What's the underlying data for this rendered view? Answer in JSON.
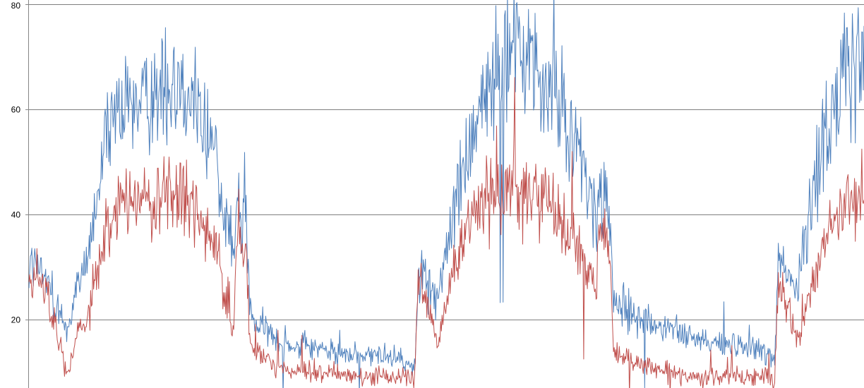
{
  "chart_data": {
    "type": "line",
    "title": "",
    "xlabel": "",
    "ylabel": "",
    "ylim": [
      7.5,
      80.8
    ],
    "yticks": [
      20,
      40,
      60,
      80
    ],
    "ytick_labels": [
      "20",
      "40",
      "60",
      "80"
    ],
    "grid": true,
    "legend": "none",
    "x_range": [
      0,
      1
    ],
    "colors": {
      "grid": "#7f7f7f",
      "axis": "#868686"
    },
    "series": [
      {
        "color": "#4f81bd",
        "keypoints": [
          [
            0.0,
            31
          ],
          [
            0.02,
            28
          ],
          [
            0.045,
            18
          ],
          [
            0.075,
            36
          ],
          [
            0.09,
            52
          ],
          [
            0.11,
            60
          ],
          [
            0.14,
            63
          ],
          [
            0.175,
            66
          ],
          [
            0.2,
            62
          ],
          [
            0.225,
            50
          ],
          [
            0.245,
            32
          ],
          [
            0.249,
            42
          ],
          [
            0.26,
            37
          ],
          [
            0.265,
            20
          ],
          [
            0.3,
            16
          ],
          [
            0.35,
            14
          ],
          [
            0.4,
            13
          ],
          [
            0.44,
            13
          ],
          [
            0.462,
            11
          ],
          [
            0.466,
            30
          ],
          [
            0.49,
            24
          ],
          [
            0.51,
            42
          ],
          [
            0.535,
            58
          ],
          [
            0.56,
            68
          ],
          [
            0.59,
            70
          ],
          [
            0.62,
            66
          ],
          [
            0.65,
            56
          ],
          [
            0.68,
            38
          ],
          [
            0.682,
            44
          ],
          [
            0.695,
            40
          ],
          [
            0.7,
            23
          ],
          [
            0.74,
            20
          ],
          [
            0.8,
            16
          ],
          [
            0.85,
            15
          ],
          [
            0.885,
            14
          ],
          [
            0.893,
            12
          ],
          [
            0.897,
            32
          ],
          [
            0.92,
            26
          ],
          [
            0.95,
            55
          ],
          [
            0.975,
            66
          ],
          [
            1.0,
            70
          ]
        ]
      },
      {
        "color": "#c0504d",
        "keypoints": [
          [
            0.0,
            27
          ],
          [
            0.02,
            26
          ],
          [
            0.045,
            10
          ],
          [
            0.075,
            24
          ],
          [
            0.09,
            36
          ],
          [
            0.11,
            42
          ],
          [
            0.14,
            42
          ],
          [
            0.175,
            44
          ],
          [
            0.2,
            41
          ],
          [
            0.225,
            32
          ],
          [
            0.245,
            17
          ],
          [
            0.249,
            36
          ],
          [
            0.26,
            33
          ],
          [
            0.265,
            14
          ],
          [
            0.3,
            11
          ],
          [
            0.35,
            10
          ],
          [
            0.4,
            9
          ],
          [
            0.44,
            9
          ],
          [
            0.462,
            9
          ],
          [
            0.466,
            29
          ],
          [
            0.49,
            16
          ],
          [
            0.51,
            30
          ],
          [
            0.535,
            40
          ],
          [
            0.56,
            44
          ],
          [
            0.59,
            45
          ],
          [
            0.62,
            43
          ],
          [
            0.65,
            36
          ],
          [
            0.68,
            26
          ],
          [
            0.682,
            38
          ],
          [
            0.695,
            34
          ],
          [
            0.7,
            14
          ],
          [
            0.74,
            11
          ],
          [
            0.8,
            9
          ],
          [
            0.85,
            9
          ],
          [
            0.885,
            9
          ],
          [
            0.893,
            8
          ],
          [
            0.897,
            28
          ],
          [
            0.92,
            16
          ],
          [
            0.95,
            33
          ],
          [
            0.975,
            42
          ],
          [
            1.0,
            44
          ]
        ]
      }
    ]
  }
}
